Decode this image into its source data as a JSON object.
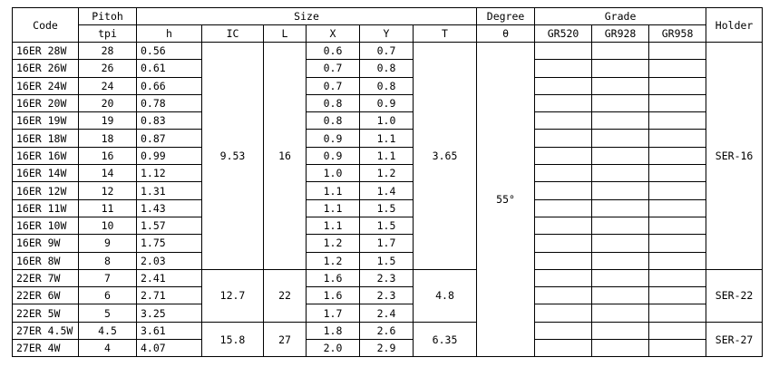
{
  "header": {
    "code": "Code",
    "pitch": "Pitoh",
    "size": "Size",
    "degree": "Degree",
    "grade": "Grade",
    "holder": "Holder"
  },
  "subheader": {
    "tpi": "tpi",
    "h": "h",
    "ic": "IC",
    "l": "L",
    "x": "X",
    "y": "Y",
    "t": "T",
    "theta": "θ",
    "gr520": "GR520",
    "gr928": "GR928",
    "gr958": "GR958"
  },
  "degree": "55°",
  "groups": [
    {
      "ic": "9.53",
      "l": "16",
      "t": "3.65",
      "holder": "SER-16",
      "rows": [
        {
          "code": "16ER 28W",
          "tpi": "28",
          "h": "0.56",
          "x": "0.6",
          "y": "0.7"
        },
        {
          "code": "16ER 26W",
          "tpi": "26",
          "h": "0.61",
          "x": "0.7",
          "y": "0.8"
        },
        {
          "code": "16ER 24W",
          "tpi": "24",
          "h": "0.66",
          "x": "0.7",
          "y": "0.8"
        },
        {
          "code": "16ER 20W",
          "tpi": "20",
          "h": "0.78",
          "x": "0.8",
          "y": "0.9"
        },
        {
          "code": "16ER 19W",
          "tpi": "19",
          "h": "0.83",
          "x": "0.8",
          "y": "1.0"
        },
        {
          "code": "16ER 18W",
          "tpi": "18",
          "h": "0.87",
          "x": "0.9",
          "y": "1.1"
        },
        {
          "code": "16ER 16W",
          "tpi": "16",
          "h": "0.99",
          "x": "0.9",
          "y": "1.1"
        },
        {
          "code": "16ER 14W",
          "tpi": "14",
          "h": "1.12",
          "x": "1.0",
          "y": "1.2"
        },
        {
          "code": "16ER 12W",
          "tpi": "12",
          "h": "1.31",
          "x": "1.1",
          "y": "1.4"
        },
        {
          "code": "16ER 11W",
          "tpi": "11",
          "h": "1.43",
          "x": "1.1",
          "y": "1.5"
        },
        {
          "code": "16ER 10W",
          "tpi": "10",
          "h": "1.57",
          "x": "1.1",
          "y": "1.5"
        },
        {
          "code": "16ER 9W",
          "tpi": "9",
          "h": "1.75",
          "x": "1.2",
          "y": "1.7"
        },
        {
          "code": "16ER 8W",
          "tpi": "8",
          "h": "2.03",
          "x": "1.2",
          "y": "1.5"
        }
      ]
    },
    {
      "ic": "12.7",
      "l": "22",
      "t": "4.8",
      "holder": "SER-22",
      "rows": [
        {
          "code": "22ER 7W",
          "tpi": "7",
          "h": "2.41",
          "x": "1.6",
          "y": "2.3"
        },
        {
          "code": "22ER 6W",
          "tpi": "6",
          "h": "2.71",
          "x": "1.6",
          "y": "2.3"
        },
        {
          "code": "22ER 5W",
          "tpi": "5",
          "h": "3.25",
          "x": "1.7",
          "y": "2.4"
        }
      ]
    },
    {
      "ic": "15.8",
      "l": "27",
      "t": "6.35",
      "holder": "SER-27",
      "rows": [
        {
          "code": "27ER 4.5W",
          "tpi": "4.5",
          "h": "3.61",
          "x": "1.8",
          "y": "2.6"
        },
        {
          "code": "27ER 4W",
          "tpi": "4",
          "h": "4.07",
          "x": "2.0",
          "y": "2.9"
        }
      ]
    }
  ]
}
